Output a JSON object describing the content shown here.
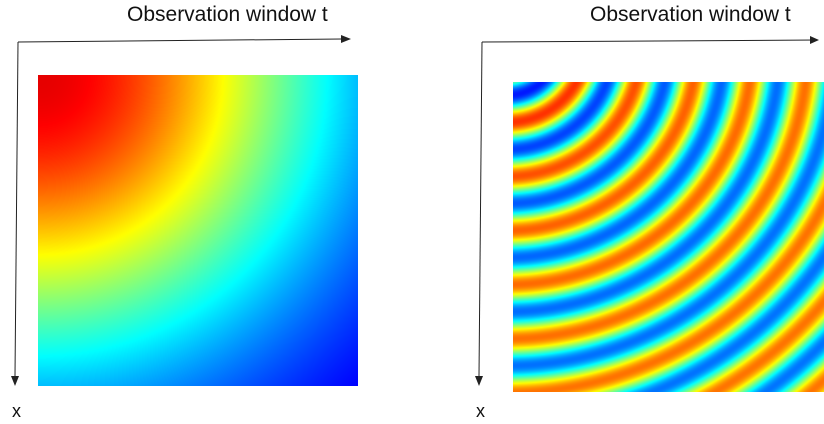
{
  "panels": [
    {
      "id": "left",
      "top_axis_label": "Observation window t",
      "left_axis_label": "x",
      "field": {
        "pattern": "smooth-radial-decay",
        "colormap": "jet"
      }
    },
    {
      "id": "right",
      "top_axis_label": "Observation window t",
      "left_axis_label": "x",
      "field": {
        "pattern": "concentric-oscillating-rings",
        "colormap": "jet"
      }
    }
  ],
  "colors": {
    "axis_line": "#222222",
    "text": "#111111"
  }
}
